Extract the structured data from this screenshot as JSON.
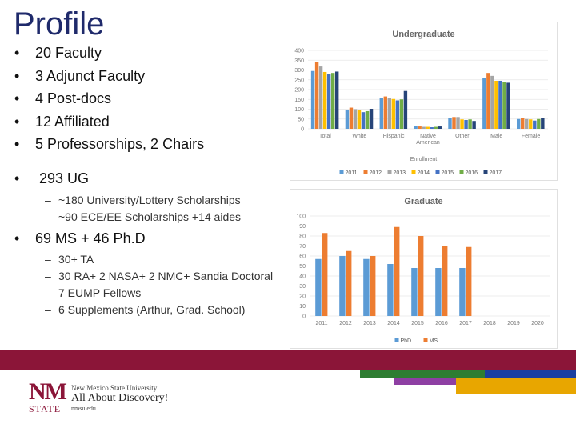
{
  "slide": {
    "title": "Profile",
    "faculty_items": [
      "20 Faculty",
      "3 Adjunct Faculty",
      "4 Post-docs",
      "12 Affiliated",
      "5 Professorships, 2 Chairs"
    ],
    "ug": {
      "label": "293 UG",
      "subs": [
        "~180 University/Lottery Scholarships",
        "~90 ECE/EE Scholarships +14 aides"
      ]
    },
    "grad": {
      "label": "69 MS + 46 Ph.D",
      "subs": [
        "30+ TA",
        "30 RA+ 2 NASA+ 2 NMC+ Sandia Doctoral",
        "7 EUMP Fellows",
        "6 Supplements (Arthur, Grad. School)"
      ]
    }
  },
  "footer": {
    "logo_nm": "NM",
    "logo_state": "STATE",
    "university": "New Mexico State University",
    "tagline": "All About Discovery!",
    "url": "nmsu.edu",
    "colors": {
      "band": "#8b1538",
      "green": "#2e7d32",
      "blue": "#1a3fa0",
      "purple": "#8e3fa3",
      "gold": "#e8a600"
    }
  },
  "chart_data": [
    {
      "type": "bar",
      "title": "Undergraduate",
      "xlabel": "Enrollment",
      "categories": [
        "Total",
        "White",
        "Hispanic",
        "Native American",
        "Other",
        "Male",
        "Female"
      ],
      "ylim": [
        0,
        400
      ],
      "yticks": [
        0,
        50,
        100,
        150,
        200,
        250,
        300,
        350,
        400
      ],
      "legend": "bottom",
      "series": [
        {
          "name": "2011",
          "color": "#5b9bd5",
          "values": [
            295,
            95,
            158,
            15,
            55,
            260,
            50
          ]
        },
        {
          "name": "2012",
          "color": "#ed7d31",
          "values": [
            340,
            108,
            165,
            12,
            60,
            285,
            55
          ]
        },
        {
          "name": "2013",
          "color": "#a5a5a5",
          "values": [
            318,
            100,
            155,
            10,
            60,
            270,
            50
          ]
        },
        {
          "name": "2014",
          "color": "#ffc000",
          "values": [
            290,
            95,
            152,
            10,
            48,
            245,
            48
          ]
        },
        {
          "name": "2015",
          "color": "#4472c4",
          "values": [
            280,
            85,
            145,
            8,
            45,
            245,
            42
          ]
        },
        {
          "name": "2016",
          "color": "#70ad47",
          "values": [
            285,
            90,
            150,
            10,
            48,
            240,
            50
          ]
        },
        {
          "name": "2017",
          "color": "#264478",
          "values": [
            292,
            102,
            193,
            12,
            40,
            235,
            55
          ]
        }
      ]
    },
    {
      "type": "bar",
      "title": "Graduate",
      "categories": [
        "2011",
        "2012",
        "2013",
        "2014",
        "2015",
        "2016",
        "2017",
        "2018",
        "2019",
        "2020"
      ],
      "ylim": [
        0,
        100
      ],
      "yticks": [
        0,
        10,
        20,
        30,
        40,
        50,
        60,
        70,
        80,
        90,
        100
      ],
      "legend": "bottom",
      "series": [
        {
          "name": "PhD",
          "color": "#5b9bd5",
          "values": [
            57,
            60,
            57,
            52,
            48,
            48,
            48,
            null,
            null,
            null
          ]
        },
        {
          "name": "MS",
          "color": "#ed7d31",
          "values": [
            83,
            65,
            60,
            89,
            80,
            70,
            69,
            null,
            null,
            null
          ]
        }
      ]
    }
  ]
}
